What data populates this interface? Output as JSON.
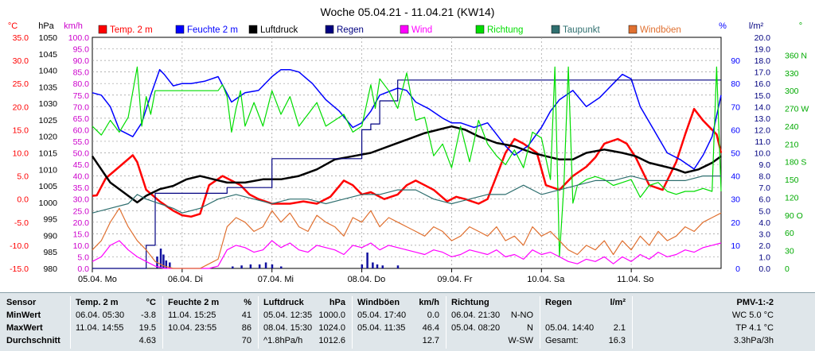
{
  "title": "Woche 05.04.21 - 11.04.21 (KW14)",
  "axes": {
    "temp": {
      "unit": "°C",
      "ticks": [
        "35.0",
        "30.0",
        "25.0",
        "20.0",
        "15.0",
        "10.0",
        "5.0",
        "0.0",
        "-5.0",
        "-10.0",
        "-15.0"
      ],
      "color": "#ff0000"
    },
    "press": {
      "unit": "hPa",
      "ticks": [
        "1050",
        "1045",
        "1040",
        "1035",
        "1030",
        "1025",
        "1020",
        "1015",
        "1010",
        "1005",
        "1000",
        "995",
        "990",
        "985",
        "980"
      ],
      "color": "#000000"
    },
    "wind": {
      "unit": "km/h",
      "ticks": [
        "100.0",
        "95.0",
        "90.0",
        "85.0",
        "80.0",
        "75.0",
        "70.0",
        "65.0",
        "60.0",
        "55.0",
        "50.0",
        "45.0",
        "40.0",
        "35.0",
        "30.0",
        "25.0",
        "20.0",
        "15.0",
        "10.0",
        "5.0",
        "0.0"
      ],
      "color": "#cc00cc"
    },
    "hum": {
      "unit": "%",
      "ticks": [
        "90",
        "80",
        "70",
        "60",
        "50",
        "40",
        "30",
        "20",
        "10",
        "0"
      ],
      "color": "#0000ff"
    },
    "rain": {
      "unit": "l/m²",
      "ticks": [
        "20.0",
        "19.0",
        "18.0",
        "17.0",
        "16.0",
        "15.0",
        "14.0",
        "13.0",
        "12.0",
        "11.0",
        "10.0",
        "9.0",
        "8.0",
        "7.0",
        "6.0",
        "5.0",
        "4.0",
        "3.0",
        "2.0",
        "1.0",
        "0.0"
      ],
      "color": "#000080"
    },
    "dir": {
      "unit": "°",
      "ticks": [
        "360 N",
        "330",
        "300",
        "270 W",
        "240",
        "210",
        "180 S",
        "150",
        "120",
        "90 O",
        "60",
        "30",
        "0"
      ],
      "color": "#00aa00"
    }
  },
  "legend": [
    {
      "label": "Temp. 2 m",
      "color": "#ff0000"
    },
    {
      "label": "Feuchte 2 m",
      "color": "#0000ff"
    },
    {
      "label": "Luftdruck",
      "color": "#000000"
    },
    {
      "label": "Regen",
      "color": "#000080"
    },
    {
      "label": "Wind",
      "color": "#ff00ff"
    },
    {
      "label": "Richtung",
      "color": "#00dd00"
    },
    {
      "label": "Taupunkt",
      "color": "#2f6f6f"
    },
    {
      "label": "Windböen",
      "color": "#e07030"
    }
  ],
  "chart_data": {
    "type": "line",
    "title": "Woche 05.04.21 - 11.04.21 (KW14)",
    "categories": [
      "05.04. Mo",
      "06.04. Di",
      "07.04. Mi",
      "08.04. Do",
      "09.04. Fr",
      "10.04. Sa",
      "11.04. So"
    ],
    "xrange_days": [
      0,
      7
    ],
    "grid": true,
    "series": [
      {
        "name": "Temp. 2 m",
        "axis": "temp",
        "color": "#ff0000",
        "width": 2.5,
        "x": [
          0,
          0.05,
          0.15,
          0.3,
          0.45,
          0.5,
          0.6,
          0.75,
          0.9,
          1.0,
          1.1,
          1.2,
          1.3,
          1.45,
          1.55,
          1.65,
          1.75,
          1.85,
          2.0,
          2.1,
          2.2,
          2.35,
          2.5,
          2.65,
          2.8,
          2.9,
          3.0,
          3.1,
          3.25,
          3.4,
          3.5,
          3.6,
          3.7,
          3.8,
          3.95,
          4.05,
          4.15,
          4.3,
          4.4,
          4.5,
          4.6,
          4.7,
          4.8,
          4.95,
          5.05,
          5.2,
          5.35,
          5.5,
          5.6,
          5.7,
          5.85,
          5.95,
          6.05,
          6.2,
          6.35,
          6.5,
          6.6,
          6.7,
          6.8,
          6.95,
          7.0
        ],
        "y": [
          0.7,
          0.8,
          4.5,
          7,
          9.5,
          8,
          2,
          -0.5,
          -2.5,
          -3.5,
          -3.8,
          -3.2,
          3,
          5,
          4,
          3,
          1,
          0,
          -1,
          -1,
          -1,
          -0.5,
          -1,
          0.5,
          4,
          3,
          1,
          1.5,
          0,
          1,
          3,
          4,
          3,
          2,
          -0.5,
          0.5,
          0,
          -1,
          0,
          5,
          10,
          13,
          12,
          10,
          3,
          2,
          5,
          7,
          9,
          12,
          13,
          12,
          9,
          3,
          2,
          8,
          14,
          19.5,
          17,
          14,
          10
        ]
      },
      {
        "name": "Feuchte 2 m",
        "axis": "hum",
        "color": "#0000ff",
        "width": 1.5,
        "x": [
          0,
          0.1,
          0.2,
          0.3,
          0.45,
          0.55,
          0.65,
          0.75,
          0.8,
          0.9,
          1.0,
          1.1,
          1.25,
          1.4,
          1.55,
          1.7,
          1.85,
          2.0,
          2.1,
          2.2,
          2.3,
          2.45,
          2.6,
          2.75,
          2.9,
          3.0,
          3.1,
          3.2,
          3.4,
          3.5,
          3.6,
          3.75,
          3.9,
          4.0,
          4.1,
          4.25,
          4.4,
          4.5,
          4.6,
          4.7,
          4.85,
          5.0,
          5.1,
          5.2,
          5.35,
          5.5,
          5.65,
          5.8,
          5.9,
          6.0,
          6.1,
          6.25,
          6.4,
          6.55,
          6.7,
          6.8,
          6.9,
          7.0
        ],
        "y": [
          76,
          75,
          70,
          60,
          57,
          63,
          75,
          86,
          84,
          79,
          80,
          80,
          81,
          83,
          72,
          76,
          77,
          83,
          86,
          86,
          85,
          80,
          73,
          68,
          61,
          63,
          68,
          75,
          78,
          77,
          72,
          69,
          65,
          63,
          63,
          61,
          63,
          58,
          53,
          49,
          53,
          61,
          68,
          73,
          77,
          70,
          74,
          80,
          84,
          82,
          70,
          60,
          50,
          47,
          43,
          49,
          57,
          75
        ]
      },
      {
        "name": "Luftdruck",
        "axis": "press",
        "color": "#000000",
        "width": 2.5,
        "x": [
          0,
          0.1,
          0.2,
          0.35,
          0.5,
          0.6,
          0.75,
          0.9,
          1.05,
          1.2,
          1.35,
          1.5,
          1.7,
          1.9,
          2.1,
          2.3,
          2.5,
          2.7,
          2.9,
          3.1,
          3.3,
          3.5,
          3.7,
          3.85,
          4.0,
          4.15,
          4.3,
          4.5,
          4.7,
          4.9,
          5.05,
          5.2,
          5.35,
          5.5,
          5.7,
          5.9,
          6.05,
          6.2,
          6.35,
          6.5,
          6.6,
          6.75,
          6.9,
          7.0
        ],
        "y": [
          1014,
          1010,
          1006,
          1003,
          1000,
          1002,
          1004,
          1005,
          1007,
          1008,
          1007,
          1006,
          1006,
          1007,
          1007,
          1008,
          1010,
          1013,
          1014,
          1015,
          1017,
          1019,
          1021,
          1022,
          1023,
          1022,
          1020,
          1018,
          1017,
          1015,
          1014,
          1013,
          1013,
          1015,
          1016,
          1015,
          1014,
          1012,
          1011,
          1010,
          1009,
          1010,
          1012,
          1014
        ]
      },
      {
        "name": "Regen",
        "axis": "rain",
        "color": "#000080",
        "width": 1.2,
        "step": true,
        "x": [
          0,
          0.5,
          0.6,
          0.7,
          0.8,
          1.0,
          1.5,
          2.0,
          2.5,
          3.0,
          3.1,
          3.2,
          3.4,
          4.0,
          4.5,
          5.0,
          5.5,
          6.0,
          6.5,
          7.0
        ],
        "y": [
          0,
          0,
          2.0,
          6.5,
          6.5,
          6.5,
          7.0,
          9.5,
          9.5,
          12.0,
          12.5,
          14.5,
          16.3,
          16.3,
          16.3,
          16.3,
          16.3,
          16.3,
          16.3,
          16.3
        ]
      },
      {
        "name": "Richtung",
        "axis": "dir",
        "color": "#00dd00",
        "width": 1.2,
        "x": [
          0,
          0.1,
          0.2,
          0.3,
          0.4,
          0.5,
          0.55,
          0.6,
          0.65,
          0.7,
          0.8,
          0.9,
          1.0,
          1.1,
          1.2,
          1.3,
          1.4,
          1.45,
          1.5,
          1.55,
          1.6,
          1.65,
          1.7,
          1.8,
          1.9,
          2.0,
          2.1,
          2.2,
          2.3,
          2.4,
          2.5,
          2.6,
          2.7,
          2.8,
          2.9,
          3.0,
          3.1,
          3.15,
          3.2,
          3.3,
          3.4,
          3.5,
          3.6,
          3.7,
          3.8,
          3.9,
          4.0,
          4.1,
          4.2,
          4.3,
          4.4,
          4.5,
          4.6,
          4.7,
          4.8,
          4.9,
          5.0,
          5.1,
          5.15,
          5.2,
          5.25,
          5.3,
          5.35,
          5.4,
          5.5,
          5.6,
          5.7,
          5.8,
          5.9,
          6.0,
          6.1,
          6.2,
          6.3,
          6.4,
          6.5,
          6.6,
          6.7,
          6.8,
          6.9,
          6.95,
          7.0
        ],
        "y": [
          240,
          225,
          250,
          230,
          255,
          340,
          240,
          290,
          260,
          300,
          300,
          300,
          300,
          300,
          300,
          300,
          300,
          310,
          290,
          230,
          270,
          300,
          240,
          280,
          240,
          300,
          260,
          290,
          240,
          260,
          280,
          240,
          250,
          260,
          230,
          240,
          310,
          270,
          320,
          300,
          270,
          330,
          250,
          255,
          190,
          210,
          170,
          240,
          180,
          250,
          210,
          190,
          175,
          200,
          170,
          230,
          220,
          150,
          340,
          20,
          140,
          340,
          110,
          140,
          150,
          155,
          150,
          140,
          145,
          150,
          120,
          140,
          145,
          130,
          125,
          130,
          130,
          135,
          130,
          340,
          130
        ]
      },
      {
        "name": "Taupunkt",
        "axis": "temp",
        "color": "#2f6f6f",
        "width": 1.2,
        "x": [
          0,
          0.2,
          0.4,
          0.5,
          0.6,
          0.75,
          0.9,
          1.0,
          1.2,
          1.4,
          1.6,
          1.8,
          2.0,
          2.2,
          2.4,
          2.6,
          2.8,
          3.0,
          3.2,
          3.4,
          3.6,
          3.8,
          4.0,
          4.2,
          4.4,
          4.6,
          4.8,
          5.0,
          5.2,
          5.4,
          5.6,
          5.8,
          6.0,
          6.2,
          6.4,
          6.6,
          6.8,
          7.0
        ],
        "y": [
          -3,
          -2,
          -1,
          1,
          0,
          -1,
          -2,
          -3,
          -2,
          0,
          1,
          0,
          -1,
          0,
          0,
          -1,
          0,
          1,
          1,
          2,
          2,
          0,
          -1,
          0,
          1,
          1,
          3,
          1,
          2,
          3,
          4,
          4,
          5,
          4,
          4,
          4,
          5,
          5
        ]
      },
      {
        "name": "Wind",
        "axis": "wind",
        "color": "#ff00ff",
        "width": 1.2,
        "x": [
          0,
          0.1,
          0.2,
          0.3,
          0.4,
          0.5,
          0.6,
          0.7,
          0.8,
          0.9,
          1.0,
          1.1,
          1.2,
          1.3,
          1.4,
          1.5,
          1.6,
          1.7,
          1.8,
          1.9,
          2.0,
          2.1,
          2.2,
          2.3,
          2.4,
          2.5,
          2.6,
          2.7,
          2.8,
          2.9,
          3.0,
          3.1,
          3.2,
          3.3,
          3.4,
          3.5,
          3.6,
          3.7,
          3.8,
          3.9,
          4.0,
          4.1,
          4.2,
          4.3,
          4.4,
          4.5,
          4.6,
          4.7,
          4.8,
          4.9,
          5.0,
          5.1,
          5.2,
          5.3,
          5.4,
          5.5,
          5.6,
          5.7,
          5.8,
          5.9,
          6.0,
          6.1,
          6.2,
          6.3,
          6.4,
          6.5,
          6.6,
          6.7,
          6.8,
          6.9,
          7.0
        ],
        "y": [
          3,
          5,
          10,
          12,
          8,
          5,
          3,
          1,
          0,
          0,
          0,
          0,
          0,
          0,
          1,
          8,
          10,
          9,
          7,
          8,
          12,
          9,
          11,
          8,
          7,
          10,
          9,
          8,
          6,
          10,
          9,
          11,
          8,
          10,
          9,
          8,
          7,
          6,
          8,
          7,
          5,
          6,
          8,
          7,
          6,
          8,
          5,
          6,
          4,
          8,
          6,
          7,
          5,
          3,
          2,
          4,
          3,
          5,
          2,
          5,
          3,
          6,
          4,
          7,
          5,
          6,
          8,
          7,
          9,
          10,
          11
        ]
      },
      {
        "name": "Windböen",
        "axis": "wind",
        "color": "#e07030",
        "width": 1.2,
        "x": [
          0,
          0.1,
          0.2,
          0.3,
          0.4,
          0.5,
          0.6,
          0.7,
          0.8,
          0.9,
          1.0,
          1.1,
          1.2,
          1.3,
          1.4,
          1.5,
          1.6,
          1.7,
          1.8,
          1.9,
          2.0,
          2.1,
          2.2,
          2.3,
          2.4,
          2.5,
          2.6,
          2.7,
          2.8,
          2.9,
          3.0,
          3.1,
          3.2,
          3.3,
          3.4,
          3.5,
          3.6,
          3.7,
          3.8,
          3.9,
          4.0,
          4.1,
          4.2,
          4.3,
          4.4,
          4.5,
          4.6,
          4.7,
          4.8,
          4.9,
          5.0,
          5.1,
          5.2,
          5.3,
          5.4,
          5.5,
          5.6,
          5.7,
          5.8,
          5.9,
          6.0,
          6.1,
          6.2,
          6.3,
          6.4,
          6.5,
          6.6,
          6.7,
          6.8,
          6.9,
          7.0
        ],
        "y": [
          8,
          12,
          20,
          26,
          18,
          12,
          8,
          3,
          1,
          0,
          0,
          0,
          0,
          2,
          4,
          18,
          22,
          20,
          16,
          18,
          25,
          20,
          24,
          18,
          16,
          23,
          20,
          18,
          14,
          22,
          20,
          25,
          18,
          22,
          20,
          18,
          16,
          14,
          18,
          16,
          12,
          14,
          18,
          16,
          14,
          18,
          12,
          14,
          10,
          18,
          14,
          16,
          12,
          8,
          6,
          10,
          8,
          12,
          6,
          12,
          8,
          14,
          10,
          16,
          12,
          14,
          18,
          16,
          20,
          22,
          24
        ]
      }
    ]
  },
  "stats": {
    "sensor": {
      "header": "Sensor",
      "rows": [
        "MinWert",
        "MaxWert",
        "Durchschnitt"
      ]
    },
    "temp": {
      "label": "Temp. 2 m",
      "unit": "°C",
      "rows": [
        {
          "t": "06.04. 05:30",
          "v": "-3.8"
        },
        {
          "t": "11.04. 14:55",
          "v": "19.5"
        },
        {
          "t": "",
          "v": "4.63"
        }
      ]
    },
    "hum": {
      "label": "Feuchte 2 m",
      "unit": "%",
      "rows": [
        {
          "t": "11.04. 15:25",
          "v": "41"
        },
        {
          "t": "10.04. 23:55",
          "v": "86"
        },
        {
          "t": "",
          "v": "70"
        }
      ]
    },
    "press": {
      "label": "Luftdruck",
      "unit": "hPa",
      "rows": [
        {
          "t": "05.04. 12:35",
          "v": "1000.0"
        },
        {
          "t": "08.04. 15:30",
          "v": "1024.0"
        },
        {
          "t": "^1.8hPa/h",
          "v": "1012.6"
        }
      ]
    },
    "gust": {
      "label": "Windböen",
      "unit": "km/h",
      "rows": [
        {
          "t": "05.04. 17:40",
          "v": "0.0"
        },
        {
          "t": "05.04. 11:35",
          "v": "46.4"
        },
        {
          "t": "",
          "v": "12.7"
        }
      ]
    },
    "dir": {
      "label": "Richtung",
      "rows": [
        {
          "t": "06.04. 21:30",
          "v": "N-NO"
        },
        {
          "t": "05.04. 08:20",
          "v": "N"
        },
        {
          "t": "",
          "v": "W-SW"
        }
      ]
    },
    "rain": {
      "label": "Regen",
      "unit": "l/m²",
      "rows": [
        {
          "t": "",
          "v": ""
        },
        {
          "t": "05.04. 14:40",
          "v": "2.1"
        },
        {
          "t": "Gesamt:",
          "v": "16.3"
        }
      ]
    },
    "pmv": {
      "label": "PMV-1:-2",
      "rows": [
        "WC 5.0 °C",
        "TP 4.1 °C",
        "3.3hPa/3h"
      ]
    }
  }
}
